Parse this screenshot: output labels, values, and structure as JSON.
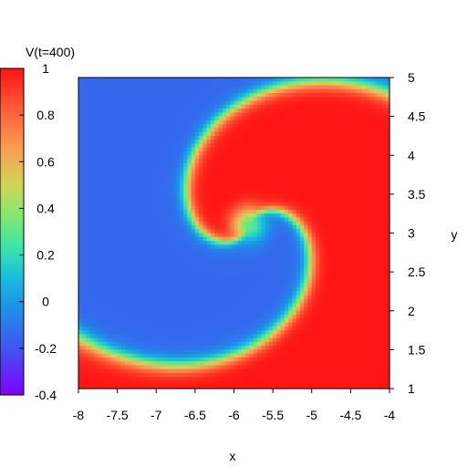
{
  "chart_data": {
    "type": "heatmap",
    "title": "",
    "xlabel": "x",
    "ylabel": "y",
    "xlim": [
      -8,
      -4
    ],
    "ylim": [
      1,
      5
    ],
    "x_ticks": [
      "-8",
      "-7.5",
      "-7",
      "-6.5",
      "-6",
      "-5.5",
      "-5",
      "-4.5",
      "-4"
    ],
    "y_ticks": [
      "1",
      "1.5",
      "2",
      "2.5",
      "3",
      "3.5",
      "4",
      "4.5",
      "5"
    ],
    "colorbar": {
      "label": "V(t=400)",
      "range": [
        -0.4,
        1
      ],
      "ticks": [
        "1",
        "0.8",
        "0.6",
        "0.4",
        "0.2",
        "0",
        "-0.2",
        "-0.4"
      ],
      "colormap": "rainbow"
    },
    "field": {
      "description": "spiral wave: excited region near 1 on the right and bottom, resting region near -0.15 upper-left, rotating tip near (-5.8, 3.1)",
      "high_value": 1.0,
      "low_value": -0.15,
      "tip": [
        -5.8,
        3.1
      ],
      "resolution": [
        80,
        80
      ]
    }
  }
}
